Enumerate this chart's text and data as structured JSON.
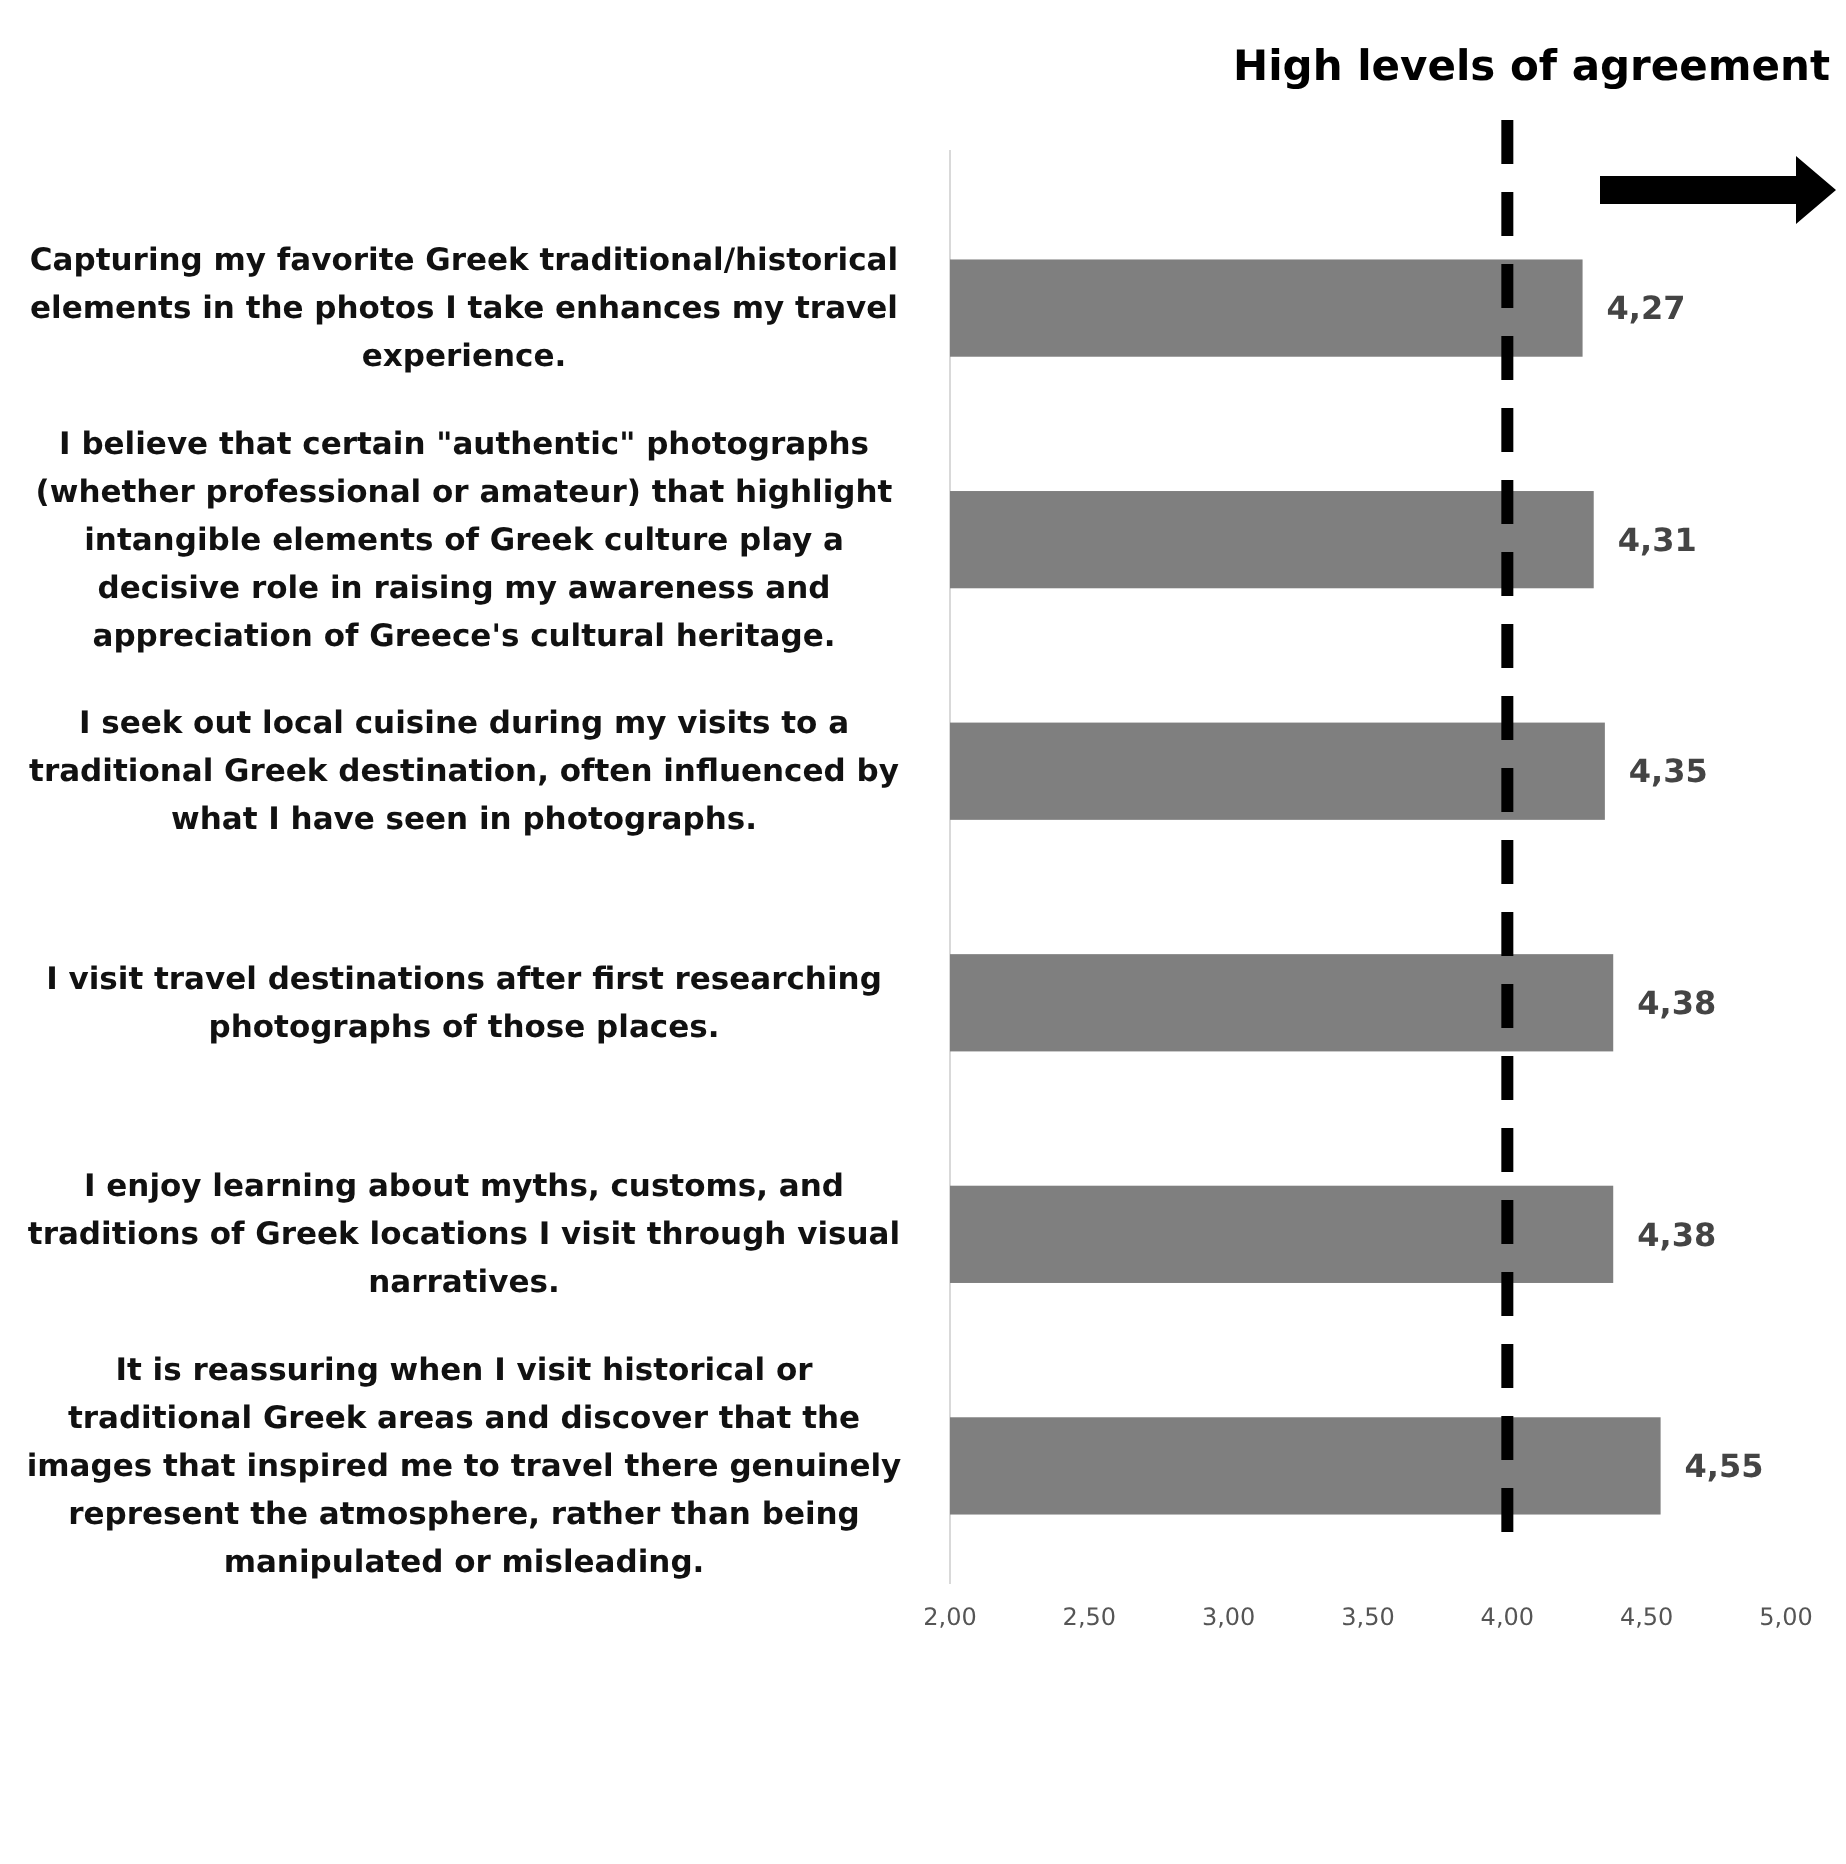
{
  "chart_data": {
    "type": "bar",
    "orientation": "horizontal",
    "categories": [
      "Capturing my favorite Greek traditional/historical elements in the photos I take enhances my travel experience.",
      "I believe that certain \"authentic\" photographs (whether professional or amateur) that highlight intangible elements of Greek culture play a decisive role in raising my awareness and appreciation of Greece's cultural heritage.",
      "I seek out local cuisine during my visits to a traditional Greek destination, often influenced by what I have seen in photographs.",
      "I visit travel destinations after first researching photographs of those places.",
      "I enjoy learning about myths, customs, and traditions of Greek locations I visit through visual narratives.",
      "It is reassuring when I visit historical or traditional Greek areas and discover that the images that inspired me to travel there genuinely represent the atmosphere, rather than being manipulated or misleading."
    ],
    "values": [
      4.27,
      4.31,
      4.35,
      4.38,
      4.38,
      4.55
    ],
    "value_labels": [
      "4,27",
      "4,31",
      "4,35",
      "4,38",
      "4,38",
      "4,55"
    ],
    "color": "#7f7f7f",
    "xlim": [
      2,
      5
    ],
    "xticks": [
      {
        "value": 2,
        "label": "2,00"
      },
      {
        "value": 2.5,
        "label": "2,50"
      },
      {
        "value": 3,
        "label": "3,00"
      },
      {
        "value": 3.5,
        "label": "3,50"
      },
      {
        "value": 4,
        "label": "4,00"
      },
      {
        "value": 4.5,
        "label": "4,50"
      },
      {
        "value": 5,
        "label": "5,00"
      }
    ],
    "ref_lines": [
      {
        "axis": "x",
        "value": 4,
        "color": "#000000",
        "line_style": "dashed"
      }
    ],
    "annotations": [
      "High levels of agreement"
    ],
    "grid": false
  }
}
